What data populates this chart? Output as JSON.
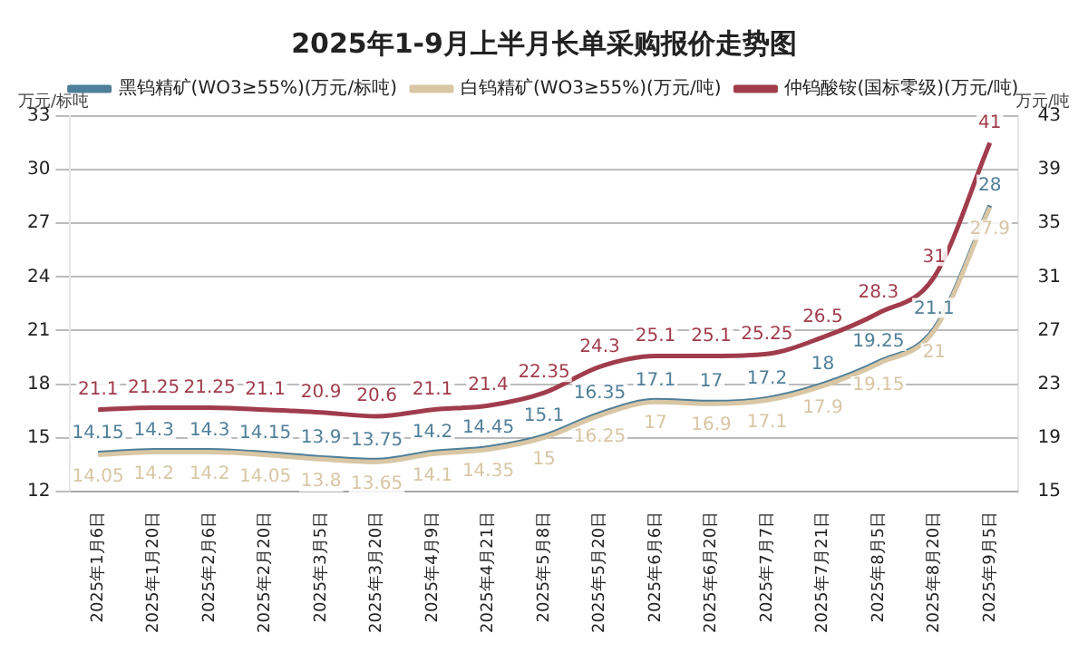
{
  "chart_data": {
    "type": "line",
    "title": "2025年1-9月上半月长单采购报价走势图",
    "ylabel": "万元/标吨",
    "y2label": "万元/吨",
    "categories": [
      "2025年1月6日",
      "2025年1月20日",
      "2025年2月6日",
      "2025年2月20日",
      "2025年3月5日",
      "2025年3月20日",
      "2025年4月9日",
      "2025年4月21日",
      "2025年5月8日",
      "2025年5月20日",
      "2025年6月6日",
      "2025年6月20日",
      "2025年7月7日",
      "2025年7月21日",
      "2025年8月5日",
      "2025年8月20日",
      "2025年9月5日"
    ],
    "series": [
      {
        "name": "黑钨精矿(WO3≥55%)(万元/标吨)",
        "color": "#4f7f99",
        "values": [
          14.15,
          14.3,
          14.3,
          14.15,
          13.9,
          13.75,
          14.2,
          14.45,
          15.1,
          16.35,
          17.1,
          17,
          17.2,
          18,
          19.25,
          21.1,
          28
        ]
      },
      {
        "name": "白钨精矿(WO3≥55%)(万元/吨)",
        "color": "#d8c6a4",
        "values": [
          14.05,
          14.2,
          14.2,
          14.05,
          13.8,
          13.65,
          14.1,
          14.35,
          15,
          16.25,
          17,
          16.9,
          17.1,
          17.9,
          19.15,
          21,
          27.9
        ]
      },
      {
        "name": "仲钨酸铵(国标零级)(万元/吨)",
        "color": "#a03c4c",
        "axis": "y2",
        "values": [
          21.1,
          21.25,
          21.25,
          21.1,
          20.9,
          20.6,
          21.1,
          21.4,
          22.35,
          24.3,
          25.1,
          25.1,
          25.25,
          26.5,
          28.3,
          31,
          41
        ]
      }
    ],
    "ylim": [
      12,
      33
    ],
    "yticks": [
      12,
      15,
      18,
      21,
      24,
      27,
      30,
      33
    ],
    "y2lim": [
      15,
      43
    ],
    "y2ticks": [
      15,
      19,
      23,
      27,
      31,
      35,
      39,
      43
    ],
    "grid": "y",
    "legend": "top",
    "marker": "none",
    "line_style": "solid",
    "data_labels": true
  }
}
